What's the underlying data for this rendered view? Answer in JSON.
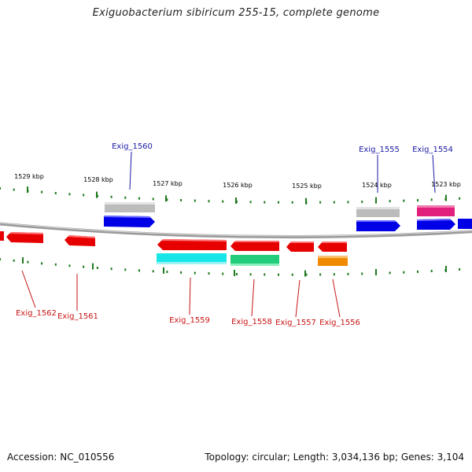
{
  "title": "Exiguobacterium sibiricum 255-15, complete genome",
  "footer": {
    "accession": "Accession: NC_010556",
    "summary": "Topology: circular; Length: 3,034,136 bp; Genes: 3,104"
  },
  "ticks": [
    "1529 kbp",
    "1528 kbp",
    "1527 kbp",
    "1526 kbp",
    "1525 kbp",
    "1524 kbp",
    "1523 kbp"
  ],
  "gene_labels": {
    "forward": [
      "Exig_1560",
      "Exig_1555",
      "Exig_1554"
    ],
    "reverse": [
      "Exig_1562",
      "Exig_1561",
      "Exig_1559",
      "Exig_1558",
      "Exig_1557",
      "Exig_1556"
    ]
  },
  "colors": {
    "backbone": "#8a8a8a",
    "tick": "#1f7a1f",
    "forward_label": "#1a1aa6",
    "reverse_label": "#c81414",
    "gene_forward": "#0000e6",
    "gene_reverse": "#e60000",
    "feature_gray": "#b9b9b9",
    "feature_magenta": "#e0207a",
    "feature_cyan": "#19e6e6",
    "feature_green": "#22cc7a",
    "feature_orange": "#f08a00"
  }
}
